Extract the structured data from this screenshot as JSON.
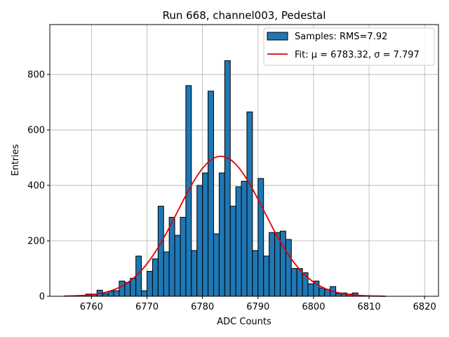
{
  "chart_data": {
    "type": "bar",
    "title": "Run 668, channel003, Pedestal",
    "xlabel": "ADC Counts",
    "ylabel": "Entries",
    "xlim": [
      6752.5,
      6822.5
    ],
    "ylim": [
      0,
      980
    ],
    "xticks": [
      6760,
      6770,
      6780,
      6790,
      6800,
      6810,
      6820
    ],
    "yticks": [
      0,
      200,
      400,
      600,
      800
    ],
    "grid": true,
    "legend_position": "top-right",
    "colors": {
      "bars": "#1f77b4",
      "bar_edge": "#000000",
      "fit": "#e00000",
      "grid": "#b0b0b0"
    },
    "histogram": {
      "name": "Samples: RMS=7.92",
      "bin_width": 1,
      "bins": [
        {
          "x": 6759,
          "y": 8
        },
        {
          "x": 6760,
          "y": 8
        },
        {
          "x": 6761,
          "y": 22
        },
        {
          "x": 6762,
          "y": 10
        },
        {
          "x": 6763,
          "y": 18
        },
        {
          "x": 6764,
          "y": 20
        },
        {
          "x": 6765,
          "y": 55
        },
        {
          "x": 6766,
          "y": 50
        },
        {
          "x": 6767,
          "y": 65
        },
        {
          "x": 6768,
          "y": 145
        },
        {
          "x": 6769,
          "y": 20
        },
        {
          "x": 6770,
          "y": 90
        },
        {
          "x": 6771,
          "y": 135
        },
        {
          "x": 6772,
          "y": 325
        },
        {
          "x": 6773,
          "y": 160
        },
        {
          "x": 6774,
          "y": 285
        },
        {
          "x": 6775,
          "y": 220
        },
        {
          "x": 6776,
          "y": 285
        },
        {
          "x": 6777,
          "y": 760
        },
        {
          "x": 6778,
          "y": 165
        },
        {
          "x": 6779,
          "y": 400
        },
        {
          "x": 6780,
          "y": 445
        },
        {
          "x": 6781,
          "y": 740
        },
        {
          "x": 6782,
          "y": 225
        },
        {
          "x": 6783,
          "y": 445
        },
        {
          "x": 6784,
          "y": 850
        },
        {
          "x": 6785,
          "y": 325
        },
        {
          "x": 6786,
          "y": 395
        },
        {
          "x": 6787,
          "y": 415
        },
        {
          "x": 6788,
          "y": 665
        },
        {
          "x": 6789,
          "y": 165
        },
        {
          "x": 6790,
          "y": 425
        },
        {
          "x": 6791,
          "y": 145
        },
        {
          "x": 6792,
          "y": 230
        },
        {
          "x": 6793,
          "y": 230
        },
        {
          "x": 6794,
          "y": 235
        },
        {
          "x": 6795,
          "y": 205
        },
        {
          "x": 6796,
          "y": 100
        },
        {
          "x": 6797,
          "y": 100
        },
        {
          "x": 6798,
          "y": 85
        },
        {
          "x": 6799,
          "y": 45
        },
        {
          "x": 6800,
          "y": 55
        },
        {
          "x": 6801,
          "y": 30
        },
        {
          "x": 6802,
          "y": 25
        },
        {
          "x": 6803,
          "y": 35
        },
        {
          "x": 6804,
          "y": 10
        },
        {
          "x": 6805,
          "y": 12
        },
        {
          "x": 6806,
          "y": 8
        },
        {
          "x": 6807,
          "y": 12
        },
        {
          "x": 6808,
          "y": 3
        },
        {
          "x": 6809,
          "y": 2
        },
        {
          "x": 6810,
          "y": 1
        }
      ]
    },
    "fit": {
      "name": "Fit: μ = 6783.32, σ = 7.797",
      "mu": 6783.32,
      "sigma": 7.797,
      "amplitude": 505,
      "x_range": [
        6755,
        6813
      ]
    }
  }
}
